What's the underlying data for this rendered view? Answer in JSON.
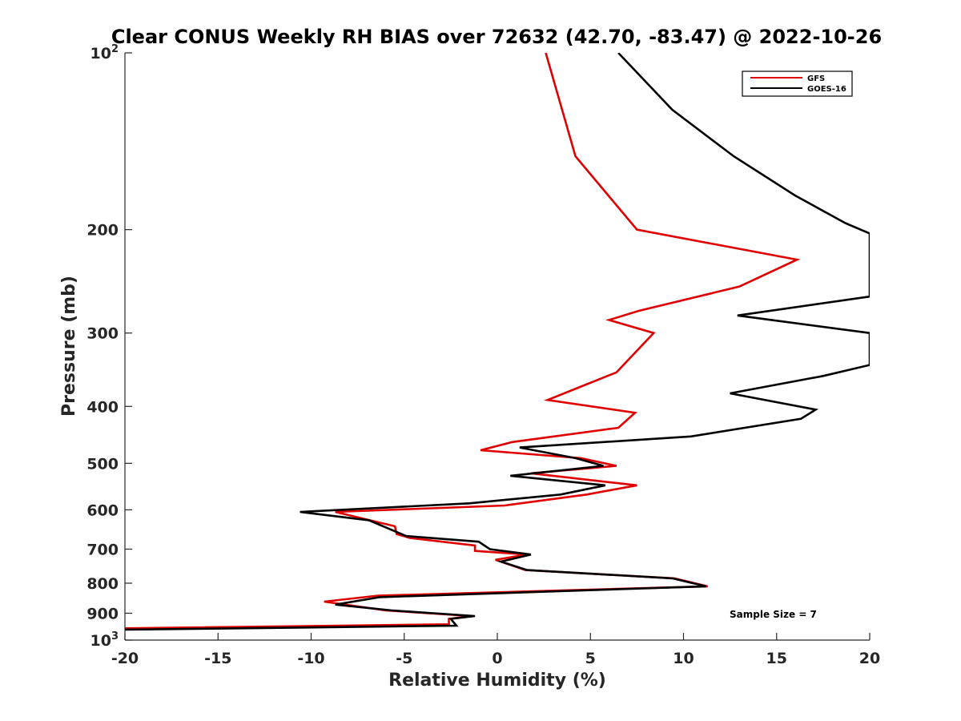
{
  "chart_data": {
    "type": "line",
    "title": "Clear CONUS Weekly RH BIAS over 72632 (42.70, -83.47) @ 2022-10-26",
    "xlabel": "Relative Humidity (%)",
    "ylabel": "Pressure (mb)",
    "xlim": [
      -20,
      20
    ],
    "ylim": [
      100,
      1000
    ],
    "y_scale": "log",
    "y_reversed": true,
    "x_ticks": [
      "-20",
      "-15",
      "-10",
      "-5",
      "0",
      "5",
      "10",
      "15",
      "20"
    ],
    "y_ticks": [
      {
        "value": 100,
        "base": "10",
        "exp": "2"
      },
      {
        "value": 200,
        "label": "200"
      },
      {
        "value": 300,
        "label": "300"
      },
      {
        "value": 400,
        "label": "400"
      },
      {
        "value": 500,
        "label": "500"
      },
      {
        "value": 600,
        "label": "600"
      },
      {
        "value": 700,
        "label": "700"
      },
      {
        "value": 800,
        "label": "800"
      },
      {
        "value": 900,
        "label": "900"
      },
      {
        "value": 1000,
        "base": "10",
        "exp": "3"
      }
    ],
    "grid": false,
    "legend_position": "top-right",
    "series": [
      {
        "name": "GFS",
        "color": "#e00000",
        "points": [
          [
            2.6,
            100
          ],
          [
            4.2,
            150
          ],
          [
            7.5,
            200
          ],
          [
            16.1,
            225
          ],
          [
            13.0,
            250
          ],
          [
            7.6,
            275
          ],
          [
            6.0,
            285
          ],
          [
            8.4,
            300
          ],
          [
            6.4,
            350
          ],
          [
            4.5,
            370
          ],
          [
            2.7,
            390
          ],
          [
            7.4,
            410
          ],
          [
            6.5,
            435
          ],
          [
            0.8,
            460
          ],
          [
            -0.9,
            475
          ],
          [
            4.5,
            490
          ],
          [
            6.4,
            505
          ],
          [
            1.8,
            520
          ],
          [
            7.5,
            545
          ],
          [
            4.8,
            565
          ],
          [
            0.4,
            590
          ],
          [
            -8.7,
            605
          ],
          [
            -5.5,
            640
          ],
          [
            -5.4,
            660
          ],
          [
            -4.7,
            670
          ],
          [
            -1.2,
            690
          ],
          [
            -1.2,
            705
          ],
          [
            1.6,
            715
          ],
          [
            -0.1,
            730
          ],
          [
            1.5,
            760
          ],
          [
            9.5,
            785
          ],
          [
            11.3,
            810
          ],
          [
            -6.4,
            840
          ],
          [
            -9.3,
            860
          ],
          [
            -6.0,
            890
          ],
          [
            -1.4,
            910
          ],
          [
            -2.6,
            920
          ],
          [
            -2.6,
            940
          ],
          [
            -20.0,
            955
          ]
        ]
      },
      {
        "name": "GOES-16",
        "color": "#000000",
        "points": [
          [
            6.5,
            100
          ],
          [
            9.4,
            125
          ],
          [
            12.7,
            150
          ],
          [
            16.0,
            175
          ],
          [
            18.7,
            195
          ],
          [
            20.0,
            203
          ],
          [
            20.0,
            260
          ],
          [
            12.9,
            280
          ],
          [
            20.0,
            300
          ],
          [
            20.0,
            340
          ],
          [
            17.5,
            355
          ],
          [
            12.5,
            380
          ],
          [
            17.1,
            405
          ],
          [
            16.3,
            420
          ],
          [
            10.4,
            450
          ],
          [
            1.2,
            470
          ],
          [
            4.2,
            490
          ],
          [
            5.7,
            505
          ],
          [
            0.7,
            525
          ],
          [
            5.8,
            545
          ],
          [
            3.4,
            565
          ],
          [
            -1.5,
            585
          ],
          [
            -10.6,
            605
          ],
          [
            -6.9,
            625
          ],
          [
            -4.9,
            665
          ],
          [
            -1.0,
            680
          ],
          [
            -0.4,
            700
          ],
          [
            1.8,
            715
          ],
          [
            0.2,
            735
          ],
          [
            1.6,
            760
          ],
          [
            9.4,
            785
          ],
          [
            11.2,
            810
          ],
          [
            -6.3,
            845
          ],
          [
            -8.7,
            870
          ],
          [
            -5.7,
            890
          ],
          [
            -1.2,
            910
          ],
          [
            -2.5,
            920
          ],
          [
            -2.2,
            945
          ],
          [
            -20.0,
            960
          ]
        ]
      }
    ],
    "annotation": "Sample Size = 7"
  }
}
